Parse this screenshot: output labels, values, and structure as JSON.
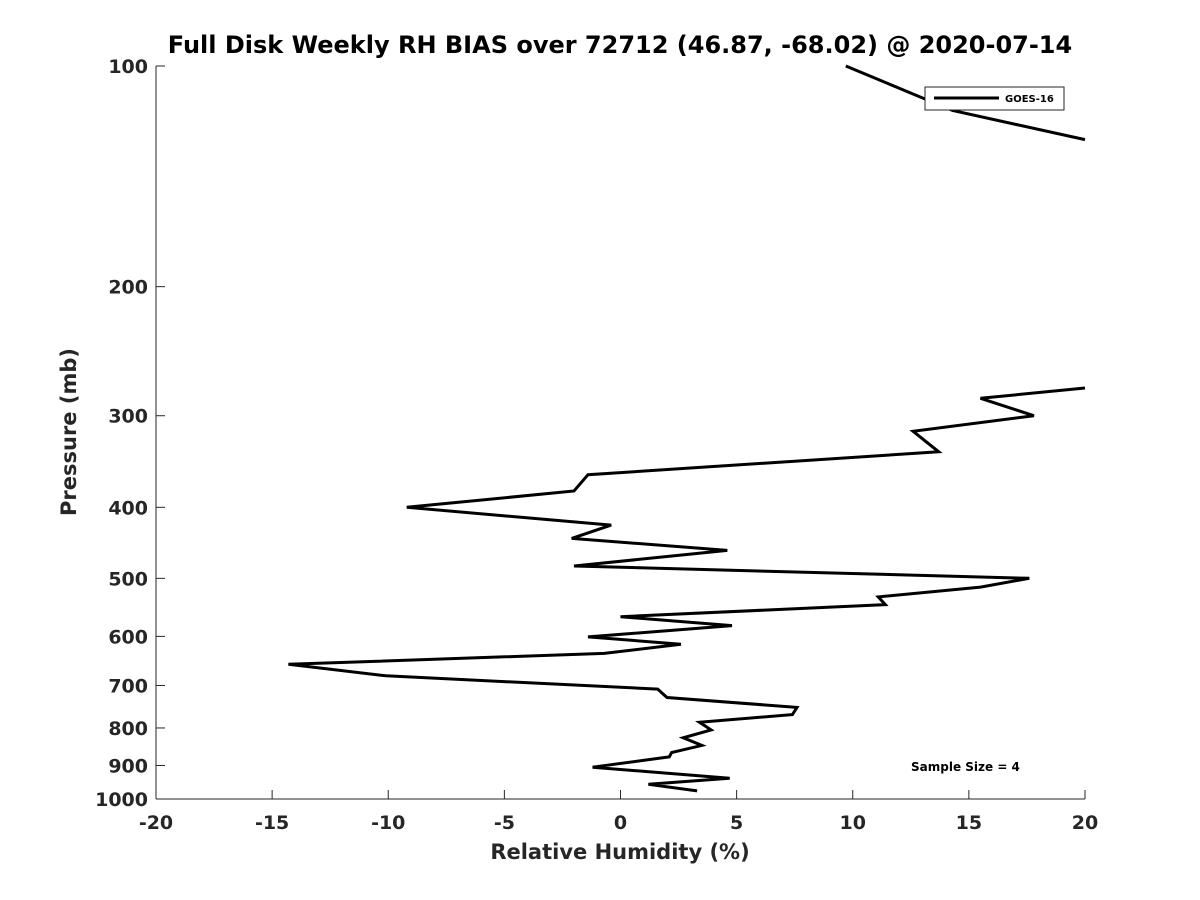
{
  "chart_data": {
    "type": "line",
    "title": "Full Disk Weekly RH BIAS over 72712 (46.87, -68.02) @ 2020-07-14",
    "xlabel": "Relative Humidity (%)",
    "ylabel": "Pressure (mb)",
    "xlim": [
      -20,
      20
    ],
    "ylim": [
      1000,
      100
    ],
    "yscale": "log",
    "yreverse": true,
    "grid": false,
    "legend_position": "top-right",
    "x_ticks": [
      -20,
      -15,
      -10,
      -5,
      0,
      5,
      10,
      15,
      20
    ],
    "x_tick_labels": [
      "-20",
      "-15",
      "-10",
      "-5",
      "0",
      "5",
      "10",
      "15",
      "20"
    ],
    "y_ticks": [
      100,
      200,
      300,
      400,
      500,
      600,
      700,
      800,
      900,
      1000
    ],
    "y_tick_labels": [
      "100",
      "200",
      "300",
      "400",
      "500",
      "600",
      "700",
      "800",
      "900",
      "1000"
    ],
    "annotation": "Sample Size = 4",
    "series": [
      {
        "name": "GOES-16",
        "color": "#000000",
        "segments": [
          [
            {
              "x": 9.7,
              "p": 100
            },
            {
              "x": 14.3,
              "p": 115
            },
            {
              "x": 20.0,
              "p": 126
            }
          ],
          [
            {
              "x": 20.0,
              "p": 275
            },
            {
              "x": 15.5,
              "p": 284
            },
            {
              "x": 17.8,
              "p": 300
            },
            {
              "x": 12.6,
              "p": 315
            },
            {
              "x": 13.7,
              "p": 336
            },
            {
              "x": -1.4,
              "p": 361
            },
            {
              "x": -2.0,
              "p": 380
            },
            {
              "x": -9.2,
              "p": 400
            },
            {
              "x": -0.4,
              "p": 423
            },
            {
              "x": -2.1,
              "p": 441
            },
            {
              "x": 4.6,
              "p": 458
            },
            {
              "x": -2.0,
              "p": 481
            },
            {
              "x": 17.6,
              "p": 500
            },
            {
              "x": 15.5,
              "p": 514
            },
            {
              "x": 11.1,
              "p": 530
            },
            {
              "x": 11.4,
              "p": 543
            },
            {
              "x": 0.0,
              "p": 564
            },
            {
              "x": 4.8,
              "p": 580
            },
            {
              "x": -1.4,
              "p": 601
            },
            {
              "x": 2.6,
              "p": 615
            },
            {
              "x": -0.7,
              "p": 633
            },
            {
              "x": -14.3,
              "p": 655
            },
            {
              "x": -10.1,
              "p": 679
            },
            {
              "x": 1.6,
              "p": 708
            },
            {
              "x": 2.0,
              "p": 727
            },
            {
              "x": 7.6,
              "p": 750
            },
            {
              "x": 7.4,
              "p": 767
            },
            {
              "x": 3.4,
              "p": 786
            },
            {
              "x": 3.9,
              "p": 805
            },
            {
              "x": 2.7,
              "p": 825
            },
            {
              "x": 3.5,
              "p": 845
            },
            {
              "x": 2.2,
              "p": 864
            },
            {
              "x": 2.1,
              "p": 876
            },
            {
              "x": -1.2,
              "p": 905
            },
            {
              "x": 4.7,
              "p": 937
            },
            {
              "x": 1.2,
              "p": 955
            },
            {
              "x": 3.3,
              "p": 975
            }
          ]
        ]
      }
    ]
  }
}
